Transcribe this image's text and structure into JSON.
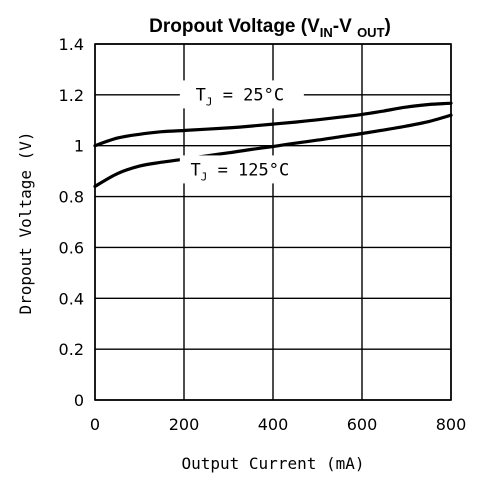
{
  "chart_data": {
    "type": "line",
    "title": {
      "main": "Dropout Voltage (V",
      "sub1": "IN",
      "mid": "-V ",
      "sub2": "OUT",
      "end": ")"
    },
    "xlabel": "Output Current (mA)",
    "ylabel": "Dropout Voltage (V)",
    "xlim": [
      0,
      800
    ],
    "ylim": [
      0,
      1.4
    ],
    "x_ticks": [
      {
        "value": 0,
        "label": "0"
      },
      {
        "value": 200,
        "label": "200"
      },
      {
        "value": 400,
        "label": "400"
      },
      {
        "value": 600,
        "label": "600"
      },
      {
        "value": 800,
        "label": "800"
      }
    ],
    "y_ticks": [
      {
        "value": 0,
        "label": "0"
      },
      {
        "value": 0.2,
        "label": "0.2"
      },
      {
        "value": 0.4,
        "label": "0.4"
      },
      {
        "value": 0.6,
        "label": "0.6"
      },
      {
        "value": 0.8,
        "label": "0.8"
      },
      {
        "value": 1.0,
        "label": "1"
      },
      {
        "value": 1.2,
        "label": "1.2"
      },
      {
        "value": 1.4,
        "label": "1.4"
      }
    ],
    "grid": true,
    "series": [
      {
        "name": "TJ = 25°C",
        "x": [
          0,
          50,
          100,
          150,
          200,
          250,
          300,
          350,
          400,
          450,
          500,
          550,
          600,
          650,
          700,
          750,
          800
        ],
        "y": [
          1.0,
          1.03,
          1.045,
          1.055,
          1.06,
          1.065,
          1.07,
          1.077,
          1.085,
          1.093,
          1.102,
          1.112,
          1.123,
          1.137,
          1.152,
          1.162,
          1.167
        ]
      },
      {
        "name": "TJ = 125°C",
        "x": [
          0,
          50,
          100,
          150,
          200,
          250,
          300,
          350,
          400,
          450,
          500,
          550,
          600,
          650,
          700,
          750,
          800
        ],
        "y": [
          0.84,
          0.89,
          0.92,
          0.935,
          0.947,
          0.96,
          0.972,
          0.985,
          0.997,
          1.01,
          1.022,
          1.035,
          1.048,
          1.062,
          1.077,
          1.095,
          1.12
        ]
      }
    ],
    "annotations": [
      {
        "main": "T",
        "sub": "J",
        "rest": " = 25°C",
        "x": 330,
        "y": 1.19
      },
      {
        "main": "T",
        "sub": "J",
        "rest": " = 125°C",
        "x": 330,
        "y": 0.895
      }
    ]
  }
}
